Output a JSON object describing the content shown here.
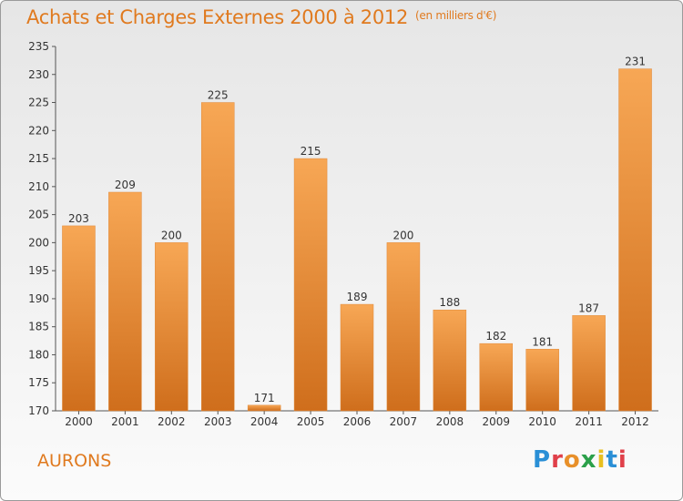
{
  "header": {
    "title": "Achats et Charges Externes 2000 à 2012",
    "subtitle": "(en milliers d'€)"
  },
  "footer": {
    "place": "AURONS",
    "logo_text": "Proxiti"
  },
  "colors": {
    "accent": "#e07a1f",
    "bar_light": "#f7a755",
    "bar_dark": "#cf6e1c"
  },
  "chart_data": {
    "type": "bar",
    "categories": [
      "2000",
      "2001",
      "2002",
      "2003",
      "2004",
      "2005",
      "2006",
      "2007",
      "2008",
      "2009",
      "2010",
      "2011",
      "2012"
    ],
    "values": [
      203,
      209,
      200,
      225,
      171,
      215,
      189,
      200,
      188,
      182,
      181,
      187,
      231
    ],
    "ylim": [
      170,
      235
    ],
    "yticks": [
      170,
      175,
      180,
      185,
      190,
      195,
      200,
      205,
      210,
      215,
      220,
      225,
      230,
      235
    ],
    "grid": false,
    "legend": "none"
  }
}
